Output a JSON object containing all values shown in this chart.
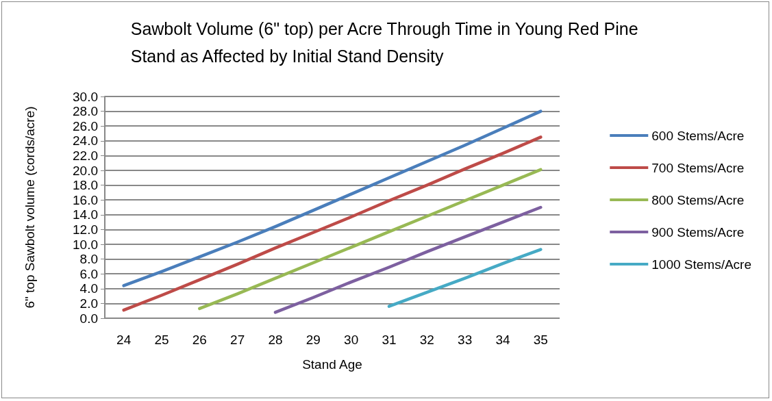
{
  "chart_data": {
    "type": "line",
    "title": "Sawbolt Volume (6\" top) per Acre Through Time in Young Red Pine\nStand as Affected by Initial Stand Density",
    "xlabel": "Stand Age",
    "ylabel": "6\" top Sawbolt volume (cords/acre)",
    "categories": [
      "24",
      "25",
      "26",
      "27",
      "28",
      "29",
      "30",
      "31",
      "32",
      "33",
      "34",
      "35"
    ],
    "series": [
      {
        "name": "600 Stems/Acre",
        "color": "#4a7ebb",
        "values": [
          4.4,
          6.3,
          8.3,
          10.3,
          12.4,
          14.6,
          16.8,
          19.0,
          21.2,
          23.4,
          25.7,
          28.0
        ]
      },
      {
        "name": "700 Stems/Acre",
        "color": "#be4b48",
        "values": [
          1.1,
          3.1,
          5.2,
          7.3,
          9.5,
          11.6,
          13.7,
          15.9,
          18.0,
          20.2,
          22.3,
          24.5
        ]
      },
      {
        "name": "800 Stems/Acre",
        "color": "#98b954",
        "values": [
          null,
          null,
          1.3,
          3.3,
          5.4,
          7.5,
          9.6,
          11.7,
          13.8,
          15.9,
          18.0,
          20.1
        ]
      },
      {
        "name": "900 Stems/Acre",
        "color": "#7d60a0",
        "values": [
          null,
          null,
          null,
          null,
          0.8,
          2.8,
          4.9,
          6.9,
          9.0,
          11.0,
          13.0,
          15.0
        ]
      },
      {
        "name": "1000 Stems/Acre",
        "color": "#46aac5",
        "values": [
          null,
          null,
          null,
          null,
          null,
          null,
          null,
          1.6,
          3.5,
          5.4,
          7.4,
          9.3
        ]
      }
    ],
    "ylim": [
      0,
      30
    ],
    "yticks": [
      {
        "value": 0,
        "label": "0.0"
      },
      {
        "value": 2,
        "label": "2.0"
      },
      {
        "value": 4,
        "label": "4.0"
      },
      {
        "value": 6,
        "label": "6.0"
      },
      {
        "value": 8,
        "label": "8.0"
      },
      {
        "value": 10,
        "label": "10.0"
      },
      {
        "value": 12,
        "label": "12.0"
      },
      {
        "value": 14,
        "label": "14.0"
      },
      {
        "value": 16,
        "label": "16.0"
      },
      {
        "value": 18,
        "label": "18.0"
      },
      {
        "value": 20,
        "label": "20.0"
      },
      {
        "value": 22,
        "label": "22.0"
      },
      {
        "value": 24,
        "label": "24.0"
      },
      {
        "value": 26,
        "label": "26.0"
      },
      {
        "value": 28,
        "label": "28.0"
      },
      {
        "value": 30,
        "label": "30.0"
      }
    ],
    "grid": "y",
    "legend": "right",
    "marker": "none",
    "line_style": "solid"
  }
}
